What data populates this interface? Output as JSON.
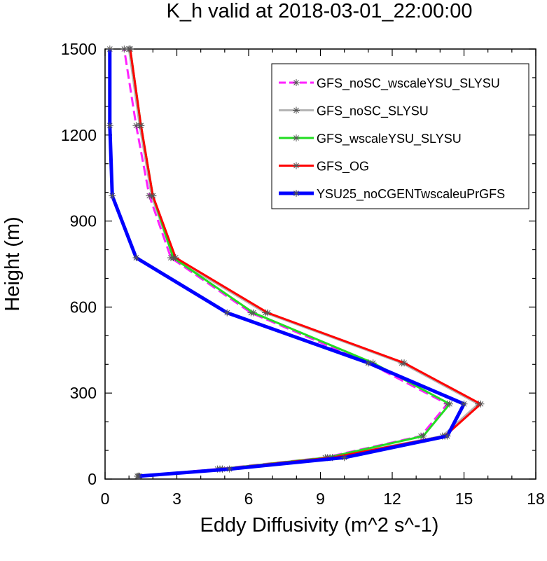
{
  "chart_data": {
    "type": "line",
    "title": "K_h valid at 2018-03-01_22:00:00",
    "xlabel": "Eddy Diffusivity (m^2 s^-1)",
    "ylabel": "Height (m)",
    "xlim": [
      0,
      18
    ],
    "ylim": [
      0,
      1500
    ],
    "xticks": [
      0,
      3,
      6,
      9,
      12,
      15,
      18
    ],
    "yticks": [
      0,
      300,
      600,
      900,
      1200,
      1500
    ],
    "xminor_step": 1,
    "yminor_step": 100,
    "grid": false,
    "legend_position": "top-right",
    "series": [
      {
        "name": "GFS_noSC_wscaleYSU_SLYSU",
        "color": "#ff22ff",
        "dash": "dashed",
        "markers": true,
        "points": [
          [
            1.35,
            10
          ],
          [
            4.7,
            35
          ],
          [
            9.2,
            75
          ],
          [
            13.2,
            150
          ],
          [
            14.3,
            262
          ],
          [
            11.0,
            405
          ],
          [
            6.1,
            580
          ],
          [
            2.75,
            772
          ],
          [
            1.85,
            988
          ],
          [
            1.3,
            1233
          ],
          [
            0.8,
            1500
          ]
        ]
      },
      {
        "name": "GFS_noSC_SLYSU",
        "color": "#b4b4b4",
        "dash": "solid",
        "markers": true,
        "points": [
          [
            1.4,
            10
          ],
          [
            4.9,
            35
          ],
          [
            9.4,
            75
          ],
          [
            14.1,
            150
          ],
          [
            15.6,
            262
          ],
          [
            12.4,
            405
          ],
          [
            6.7,
            580
          ],
          [
            2.85,
            772
          ],
          [
            1.95,
            988
          ],
          [
            1.45,
            1233
          ],
          [
            1.0,
            1500
          ]
        ]
      },
      {
        "name": "GFS_wscaleYSU_SLYSU",
        "color": "#22dd22",
        "dash": "solid",
        "markers": true,
        "points": [
          [
            1.4,
            10
          ],
          [
            4.8,
            35
          ],
          [
            9.3,
            75
          ],
          [
            13.3,
            150
          ],
          [
            14.4,
            262
          ],
          [
            11.2,
            405
          ],
          [
            6.2,
            580
          ],
          [
            2.85,
            772
          ],
          [
            2.0,
            988
          ],
          [
            1.5,
            1233
          ],
          [
            1.05,
            1500
          ]
        ]
      },
      {
        "name": "GFS_OG",
        "color": "#ff0000",
        "dash": "solid",
        "markers": true,
        "points": [
          [
            1.45,
            10
          ],
          [
            4.9,
            35
          ],
          [
            9.5,
            75
          ],
          [
            14.2,
            150
          ],
          [
            15.7,
            262
          ],
          [
            12.5,
            405
          ],
          [
            6.8,
            580
          ],
          [
            2.95,
            772
          ],
          [
            2.0,
            988
          ],
          [
            1.5,
            1233
          ],
          [
            1.05,
            1500
          ]
        ]
      },
      {
        "name": "YSU25_noCGENTwscaleuPrGFS",
        "color": "#0000ff",
        "dash": "solid",
        "markers": true,
        "points": [
          [
            1.4,
            10
          ],
          [
            5.2,
            35
          ],
          [
            10.0,
            75
          ],
          [
            14.3,
            150
          ],
          [
            15.0,
            262
          ],
          [
            11.0,
            405
          ],
          [
            5.1,
            580
          ],
          [
            1.3,
            772
          ],
          [
            0.3,
            988
          ],
          [
            0.2,
            1233
          ],
          [
            0.2,
            1500
          ]
        ]
      }
    ]
  }
}
